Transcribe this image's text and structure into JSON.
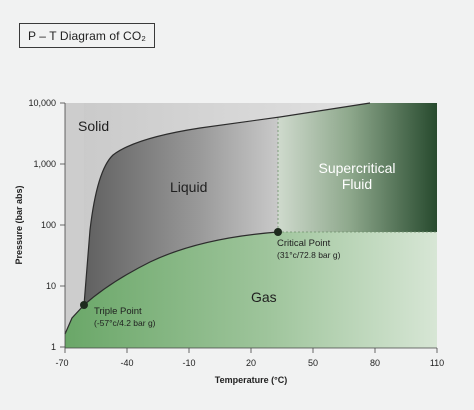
{
  "title": "P – T Diagram of CO₂",
  "axes": {
    "x_label": "Temperature (°C)",
    "y_label": "Pressure (bar abs)",
    "x_ticks": [
      "-70",
      "-40",
      "-10",
      "20",
      "50",
      "80",
      "110"
    ],
    "y_ticks": [
      "10,000",
      "1,000",
      "100",
      "10",
      "1"
    ]
  },
  "regions": {
    "solid": "Solid",
    "liquid": "Liquid",
    "supercritical_line1": "Supercritical",
    "supercritical_line2": "Fluid",
    "gas": "Gas"
  },
  "points": {
    "triple": {
      "label": "Triple Point",
      "detail": "(-57°c/4.2 bar g)",
      "temperature_c": -57,
      "pressure_bar_abs": 5.2
    },
    "critical": {
      "label": "Critical Point",
      "detail": "(31°c/72.8 bar g)",
      "temperature_c": 31,
      "pressure_bar_abs": 73.8
    }
  },
  "colors": {
    "solid_region": "#d6d6d6",
    "liquid_region": "#7d7d7d",
    "supercritical_region": "#2f4f35",
    "gas_region": "#7fb37d",
    "point_marker": "#1e2a1e"
  }
}
